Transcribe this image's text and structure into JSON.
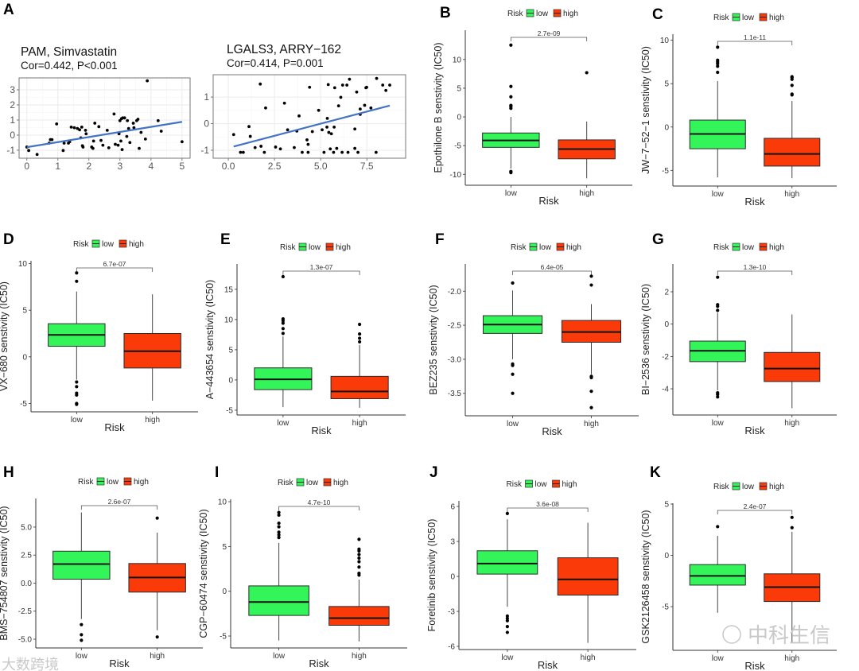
{
  "chart_data": [
    {
      "type": "scatter",
      "panel": "A",
      "title": "PAM, Simvastatin",
      "subtitle": "Cor=0.442, P<0.001",
      "xlim": [
        -0.25,
        5.26
      ],
      "ylim": [
        -1.53,
        3.79
      ],
      "xticks": [
        "0",
        "1",
        "2",
        "3",
        "4",
        "5"
      ],
      "xtick_values": [
        0,
        1,
        2,
        3,
        4,
        5
      ],
      "yticks": [
        "-1",
        "0",
        "1",
        "2",
        "3"
      ],
      "ytick_values": [
        -1,
        0,
        1,
        2,
        3
      ],
      "grid": true,
      "fit_line": [
        [
          0,
          -0.8
        ],
        [
          5,
          0.88
        ]
      ],
      "points": [
        [
          0,
          -0.79
        ],
        [
          0.06,
          -1.02
        ],
        [
          0.33,
          -1.28
        ],
        [
          0.96,
          0.74
        ],
        [
          0.76,
          -0.3
        ],
        [
          0.81,
          -0.3
        ],
        [
          0.72,
          -0.53
        ],
        [
          1.17,
          -1.02
        ],
        [
          1.2,
          -0.53
        ],
        [
          1.34,
          -0.53
        ],
        [
          1.38,
          -0.44
        ],
        [
          1.43,
          0.53
        ],
        [
          1.53,
          0.49
        ],
        [
          1.63,
          0.44
        ],
        [
          1.7,
          0.35
        ],
        [
          1.77,
          0.53
        ],
        [
          1.74,
          -0.18
        ],
        [
          1.79,
          -0.7
        ],
        [
          1.81,
          -0.79
        ],
        [
          1.89,
          0.32
        ],
        [
          1.91,
          0.09
        ],
        [
          2.09,
          -0.79
        ],
        [
          2.13,
          -0.88
        ],
        [
          2.19,
          0.79
        ],
        [
          2.32,
          0.56
        ],
        [
          2.15,
          -0.39
        ],
        [
          2.39,
          -0.35
        ],
        [
          2.45,
          -0.67
        ],
        [
          2.59,
          0.32
        ],
        [
          2.64,
          -0.84
        ],
        [
          2.81,
          1.4
        ],
        [
          2.85,
          -0.61
        ],
        [
          2.94,
          -0.67
        ],
        [
          2.97,
          0.09
        ],
        [
          3.0,
          0.96
        ],
        [
          3.03,
          -0.39
        ],
        [
          3.05,
          1.09
        ],
        [
          3.09,
          1.14
        ],
        [
          3.15,
          1.14
        ],
        [
          3.24,
          0.96
        ],
        [
          3.22,
          -0.09
        ],
        [
          3.28,
          0.44
        ],
        [
          3.32,
          -0.49
        ],
        [
          3.43,
          0.79
        ],
        [
          3.45,
          0.49
        ],
        [
          3.54,
          0.96
        ],
        [
          3.58,
          1.05
        ],
        [
          3.62,
          -0.88
        ],
        [
          3.68,
          0.18
        ],
        [
          3.82,
          -0.26
        ],
        [
          3.88,
          3.6
        ],
        [
          4.23,
          0.96
        ],
        [
          4.33,
          0.26
        ],
        [
          5.0,
          -0.44
        ],
        [
          3.07,
          -0.96
        ]
      ]
    },
    {
      "type": "scatter",
      "panel": "A",
      "title": "LGALS3, ARRY−162",
      "subtitle": "Cor=0.414, P=0.001",
      "xlim": [
        -0.82,
        9.6
      ],
      "ylim": [
        -1.3,
        1.84
      ],
      "xticks": [
        "0.0",
        "2.5",
        "5.0",
        "7.5"
      ],
      "xtick_values": [
        0,
        2.5,
        5,
        7.5
      ],
      "yticks": [
        "-1",
        "0",
        "1"
      ],
      "ytick_values": [
        -1,
        0,
        1
      ],
      "grid": true,
      "fit_line": [
        [
          0.29,
          -0.86
        ],
        [
          8.74,
          0.68
        ]
      ],
      "points": [
        [
          0.29,
          -0.41
        ],
        [
          0.66,
          -1.08
        ],
        [
          0.81,
          -1.08
        ],
        [
          1.12,
          -0.11
        ],
        [
          1.19,
          -0.48
        ],
        [
          1.45,
          -0.9
        ],
        [
          1.73,
          1.49
        ],
        [
          1.77,
          -0.85
        ],
        [
          1.95,
          -1.08
        ],
        [
          2.02,
          0.59
        ],
        [
          2.56,
          -0.88
        ],
        [
          2.82,
          -0.95
        ],
        [
          3.04,
          0.77
        ],
        [
          3.21,
          -0.23
        ],
        [
          3.57,
          -0.9
        ],
        [
          3.71,
          -0.28
        ],
        [
          3.83,
          0.29
        ],
        [
          4.0,
          -1.08
        ],
        [
          4.26,
          -0.61
        ],
        [
          4.32,
          -0.78
        ],
        [
          4.32,
          -1.08
        ],
        [
          4.4,
          1.37
        ],
        [
          4.55,
          -0.3
        ],
        [
          4.89,
          0.5
        ],
        [
          5.08,
          -0.23
        ],
        [
          5.18,
          -1.08
        ],
        [
          5.36,
          0.2
        ],
        [
          5.41,
          1.47
        ],
        [
          5.34,
          -0.13
        ],
        [
          5.44,
          -0.33
        ],
        [
          5.58,
          -0.38
        ],
        [
          5.52,
          -0.95
        ],
        [
          5.7,
          -1.08
        ],
        [
          5.73,
          -0.13
        ],
        [
          5.76,
          1.35
        ],
        [
          5.87,
          -0.93
        ],
        [
          5.97,
          0.67
        ],
        [
          6.09,
          0.99
        ],
        [
          6.19,
          1.45
        ],
        [
          6.16,
          -1.08
        ],
        [
          6.42,
          1.45
        ],
        [
          6.48,
          -1.08
        ],
        [
          6.56,
          1.67
        ],
        [
          6.85,
          -0.93
        ],
        [
          6.85,
          -0.2
        ],
        [
          6.95,
          1.19
        ],
        [
          7.02,
          -1.08
        ],
        [
          7.14,
          0.55
        ],
        [
          7.14,
          0.35
        ],
        [
          7.38,
          0.69
        ],
        [
          7.45,
          1.35
        ],
        [
          7.49,
          1.37
        ],
        [
          7.72,
          0.59
        ],
        [
          8.0,
          -1.08
        ],
        [
          8.03,
          1.7
        ],
        [
          8.36,
          1.45
        ],
        [
          8.53,
          1.25
        ],
        [
          8.74,
          1.45
        ]
      ]
    },
    {
      "type": "box",
      "panel": "B",
      "ylabel": "Epothilone B senstivity (IC50)",
      "xlabel": "Risk",
      "pvalue": "2.7e-09",
      "ylim": [
        -11.9,
        15.1
      ],
      "yticks": [
        "-10",
        "-5",
        "0",
        "5",
        "10"
      ],
      "ytick_values": [
        -10,
        -5,
        0,
        5,
        10
      ],
      "groups": [
        {
          "name": "low",
          "q1": -5.3,
          "median": -4.1,
          "q3": -2.8,
          "whisker_low": -9.0,
          "whisker_high": 0.0,
          "outliers": [
            -9.5,
            -9.7,
            1.5,
            1.8,
            2.0,
            3.5,
            5.3,
            12.5
          ]
        },
        {
          "name": "high",
          "q1": -7.3,
          "median": -5.6,
          "q3": -4.0,
          "whisker_low": -10.7,
          "whisker_high": -0.8,
          "outliers": [
            7.7
          ]
        }
      ]
    },
    {
      "type": "box",
      "panel": "C",
      "ylabel": "JW−7−52−1 senstivity (IC50)",
      "xlabel": "Risk",
      "pvalue": "1.1e-11",
      "ylim": [
        -6.8,
        10.7
      ],
      "yticks": [
        "-5",
        "0",
        "5",
        "10"
      ],
      "ytick_values": [
        -5,
        0,
        5,
        10
      ],
      "groups": [
        {
          "name": "low",
          "q1": -2.5,
          "median": -0.8,
          "q3": 0.8,
          "whisker_low": -5.8,
          "whisker_high": 5.3,
          "outliers": [
            6.3,
            7.0,
            7.3,
            7.5,
            7.7,
            9.2
          ]
        },
        {
          "name": "high",
          "q1": -4.5,
          "median": -3.1,
          "q3": -1.3,
          "whisker_low": -5.9,
          "whisker_high": 3.0,
          "outliers": [
            3.7,
            3.8,
            4.8,
            5.5,
            5.7,
            5.8
          ]
        }
      ]
    },
    {
      "type": "box",
      "panel": "D",
      "ylabel": "VX−680 senstivity (IC50)",
      "xlabel": "Risk",
      "pvalue": "6.7e-07",
      "ylim": [
        -5.9,
        10.3
      ],
      "yticks": [
        "-5",
        "0",
        "5",
        "10"
      ],
      "ytick_values": [
        -5,
        0,
        5,
        10
      ],
      "groups": [
        {
          "name": "low",
          "q1": 1.13,
          "median": 2.35,
          "q3": 3.55,
          "whisker_low": -2.45,
          "whisker_high": 7.0,
          "outliers": [
            9.0,
            8.1,
            -2.7,
            -3.2,
            -3.9,
            -4.1,
            -5.0,
            -5.1
          ]
        },
        {
          "name": "high",
          "q1": -1.2,
          "median": 0.6,
          "q3": 2.5,
          "whisker_low": -4.7,
          "whisker_high": 6.7,
          "outliers": []
        }
      ]
    },
    {
      "type": "box",
      "panel": "E",
      "ylabel": "A−443654 senstivity (IC50)",
      "xlabel": "Risk",
      "pvalue": "1.3e-07",
      "ylim": [
        -5.8,
        19.2
      ],
      "yticks": [
        "-5",
        "0",
        "5",
        "10",
        "15"
      ],
      "ytick_values": [
        -5,
        0,
        5,
        10,
        15
      ],
      "groups": [
        {
          "name": "low",
          "q1": -1.6,
          "median": 0.1,
          "q3": 2.0,
          "whisker_low": -4.5,
          "whisker_high": 7.2,
          "outliers": [
            17.1,
            10.1,
            9.8,
            9.4,
            8.5,
            7.7
          ]
        },
        {
          "name": "high",
          "q1": -3.1,
          "median": -1.9,
          "q3": 0.6,
          "whisker_low": -4.6,
          "whisker_high": 5.8,
          "outliers": [
            9.2,
            7.6,
            6.9,
            6.3
          ]
        }
      ]
    },
    {
      "type": "box",
      "panel": "F",
      "ylabel": "BEZ235 senstivity (IC50)",
      "xlabel": "Risk",
      "pvalue": "6.4e-05",
      "ylim": [
        -3.83,
        -1.6
      ],
      "yticks": [
        "-3.5",
        "-3.0",
        "-2.5",
        "-2.0"
      ],
      "ytick_values": [
        -3.5,
        -3.0,
        -2.5,
        -2.0
      ],
      "groups": [
        {
          "name": "low",
          "q1": -2.62,
          "median": -2.49,
          "q3": -2.36,
          "whisker_low": -3.0,
          "whisker_high": -1.99,
          "outliers": [
            -1.88,
            -3.07,
            -3.09,
            -3.22,
            -3.5
          ]
        },
        {
          "name": "high",
          "q1": -2.75,
          "median": -2.6,
          "q3": -2.43,
          "whisker_low": -3.22,
          "whisker_high": -2.19,
          "outliers": [
            -1.78,
            -1.91,
            -3.25,
            -3.27,
            -3.47,
            -3.71
          ]
        }
      ]
    },
    {
      "type": "box",
      "panel": "G",
      "ylabel": "BI−2536 senstivity (IC50)",
      "xlabel": "Risk",
      "pvalue": "1.3e-10",
      "ylim": [
        -5.62,
        3.72
      ],
      "yticks": [
        "-4",
        "-2",
        "0",
        "2"
      ],
      "ytick_values": [
        -4,
        -2,
        0,
        2
      ],
      "groups": [
        {
          "name": "low",
          "q1": -2.32,
          "median": -1.65,
          "q3": -1.05,
          "whisker_low": -4.1,
          "whisker_high": 0.7,
          "outliers": [
            2.9,
            1.2,
            1.1,
            0.85,
            -4.25,
            -4.35,
            -4.5
          ]
        },
        {
          "name": "high",
          "q1": -3.55,
          "median": -2.75,
          "q3": -1.75,
          "whisker_low": -5.2,
          "whisker_high": 0.6,
          "outliers": []
        }
      ]
    },
    {
      "type": "box",
      "panel": "H",
      "ylabel": "BMS−754807 senstivity (IC50)",
      "xlabel": "Risk",
      "pvalue": "2.6e-07",
      "ylim": [
        -5.78,
        7.55
      ],
      "yticks": [
        "-5.0",
        "-2.5",
        "0.0",
        "2.5",
        "5.0"
      ],
      "ytick_values": [
        -5,
        -2.5,
        0,
        2.5,
        5
      ],
      "groups": [
        {
          "name": "low",
          "q1": 0.35,
          "median": 1.7,
          "q3": 2.85,
          "whisker_low": -3.2,
          "whisker_high": 6.3,
          "outliers": [
            -3.7,
            -4.6,
            -5.1
          ]
        },
        {
          "name": "high",
          "q1": -0.8,
          "median": 0.5,
          "q3": 1.75,
          "whisker_low": -4.2,
          "whisker_high": 4.5,
          "outliers": [
            5.8,
            -4.8
          ]
        }
      ]
    },
    {
      "type": "box",
      "panel": "I",
      "ylabel": "CGP−60474 senstivity (IC50)",
      "xlabel": "Risk",
      "pvalue": "4.7e-10",
      "ylim": [
        -6.33,
        10.27
      ],
      "yticks": [
        "-5",
        "0",
        "5",
        "10"
      ],
      "ytick_values": [
        -5,
        0,
        5,
        10
      ],
      "groups": [
        {
          "name": "low",
          "q1": -2.7,
          "median": -1.2,
          "q3": 0.6,
          "whisker_low": -5.5,
          "whisker_high": 5.4,
          "outliers": [
            6.0,
            6.3,
            6.6,
            7.2,
            7.6,
            8.5,
            8.8
          ]
        },
        {
          "name": "high",
          "q1": -3.8,
          "median": -3.0,
          "q3": -1.7,
          "whisker_low": -5.6,
          "whisker_high": 1.3,
          "outliers": [
            1.8,
            2.0,
            2.7,
            3.3,
            3.7,
            4.1,
            4.5,
            4.7,
            5.8
          ]
        }
      ]
    },
    {
      "type": "box",
      "panel": "J",
      "ylabel": "Foretinib senstivity (IC50)",
      "xlabel": "Risk",
      "pvalue": "3.6e-08",
      "ylim": [
        -6.27,
        6.48
      ],
      "yticks": [
        "-6",
        "-3",
        "0",
        "3",
        "6"
      ],
      "ytick_values": [
        -6,
        -3,
        0,
        3,
        6
      ],
      "groups": [
        {
          "name": "low",
          "q1": 0.2,
          "median": 1.1,
          "q3": 2.2,
          "whisker_low": -2.6,
          "whisker_high": 4.9,
          "outliers": [
            5.4,
            -3.4,
            -3.6,
            -3.8,
            -4.3,
            -4.8
          ]
        },
        {
          "name": "high",
          "q1": -1.6,
          "median": -0.25,
          "q3": 1.6,
          "whisker_low": -5.7,
          "whisker_high": 4.6,
          "outliers": []
        }
      ]
    },
    {
      "type": "box",
      "panel": "K",
      "ylabel": "GSK2126458 senstivity (IC50)",
      "xlabel": "Risk",
      "pvalue": "2.4e-07",
      "ylim": [
        -9.26,
        5.08
      ],
      "yticks": [
        "-5",
        "0",
        "5"
      ],
      "ytick_values": [
        -5,
        0,
        5
      ],
      "groups": [
        {
          "name": "low",
          "q1": -2.9,
          "median": -2.0,
          "q3": -0.9,
          "whisker_low": -5.6,
          "whisker_high": 1.9,
          "outliers": [
            2.8
          ]
        },
        {
          "name": "high",
          "q1": -4.5,
          "median": -3.1,
          "q3": -1.8,
          "whisker_low": -8.5,
          "whisker_high": 2.3,
          "outliers": [
            3.7,
            2.7
          ]
        }
      ]
    }
  ],
  "legend": {
    "title": "Risk",
    "entries": [
      "low",
      "high"
    ]
  },
  "colors": {
    "low": "#33f55a",
    "high": "#fb3a0a",
    "fit_line": "#4472c4",
    "point": "#000000"
  },
  "watermarks": [
    "大数跨境",
    "中科生信"
  ]
}
